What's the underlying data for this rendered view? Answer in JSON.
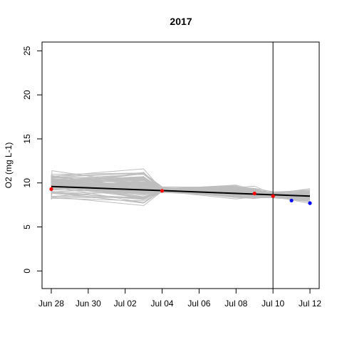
{
  "chart_data": {
    "type": "line",
    "title": "2017",
    "xlabel": "",
    "ylabel": "O2 (mg L-1)",
    "x_tick_labels": [
      "Jun 28",
      "Jun 30",
      "Jul 02",
      "Jul 04",
      "Jul 06",
      "Jul 08",
      "Jul 10",
      "Jul 12"
    ],
    "x_tick_dates": [
      "2017-06-28",
      "2017-06-30",
      "2017-07-02",
      "2017-07-04",
      "2017-07-06",
      "2017-07-08",
      "2017-07-10",
      "2017-07-12"
    ],
    "xlim": [
      "2017-06-27.5",
      "2017-07-12.5"
    ],
    "ylim": [
      -2,
      26
    ],
    "y_ticks": [
      0,
      5,
      10,
      15,
      20,
      25
    ],
    "ensemble": {
      "color": "#bebebe",
      "x": [
        "2017-06-28",
        "2017-06-28",
        "2017-07-03",
        "2017-07-04",
        "2017-07-08",
        "2017-07-09",
        "2017-07-10",
        "2017-07-12"
      ],
      "members": 100,
      "mean_envelope": [
        9.5,
        9.6,
        9.4,
        9.2,
        8.9,
        8.8,
        8.6,
        8.5
      ],
      "spread_envelope": [
        1.7,
        1.7,
        2.3,
        0.3,
        0.9,
        0.7,
        0.4,
        0.9
      ]
    },
    "series": [
      {
        "color": "#000000",
        "x": [
          "2017-06-28",
          "2017-07-12"
        ],
        "values": [
          9.6,
          8.5
        ]
      }
    ],
    "points": [
      {
        "color": "#ff0000",
        "x": [
          "2017-06-28",
          "2017-07-04",
          "2017-07-09",
          "2017-07-10"
        ],
        "values": [
          9.3,
          9.1,
          8.8,
          8.5
        ]
      },
      {
        "color": "#0000ff",
        "x": [
          "2017-07-11",
          "2017-07-12"
        ],
        "values": [
          8.0,
          7.7
        ]
      }
    ],
    "vline_date": "2017-07-10"
  }
}
